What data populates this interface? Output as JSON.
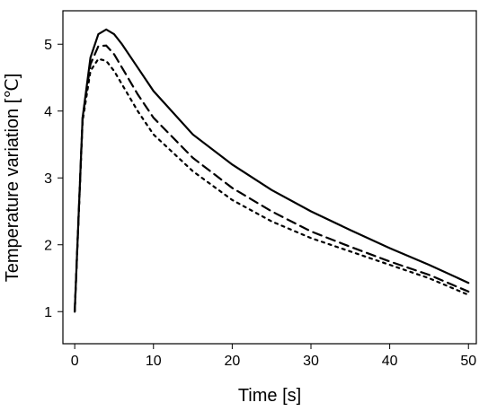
{
  "chart_data": {
    "type": "line",
    "x_label": "Time [s]",
    "y_label": "Temperature variation [℃]",
    "x": [
      0,
      1,
      2,
      3,
      4,
      5,
      6,
      8,
      10,
      15,
      20,
      25,
      30,
      35,
      40,
      45,
      50
    ],
    "series": [
      {
        "color": "#000000",
        "dash": "solid",
        "values": [
          1.0,
          3.9,
          4.8,
          5.15,
          5.22,
          5.15,
          5.0,
          4.65,
          4.3,
          3.65,
          3.2,
          2.82,
          2.5,
          2.22,
          1.95,
          1.7,
          1.43
        ]
      },
      {
        "color": "#000000",
        "dash": "dashed",
        "values": [
          1.0,
          3.9,
          4.7,
          4.97,
          4.98,
          4.85,
          4.65,
          4.25,
          3.9,
          3.3,
          2.85,
          2.5,
          2.2,
          1.97,
          1.75,
          1.55,
          1.3
        ]
      },
      {
        "color": "#000000",
        "dash": "dotted",
        "values": [
          1.0,
          3.85,
          4.6,
          4.78,
          4.75,
          4.6,
          4.4,
          4.0,
          3.65,
          3.1,
          2.67,
          2.35,
          2.1,
          1.9,
          1.7,
          1.5,
          1.25
        ]
      }
    ],
    "xlim": [
      -1.5,
      51
    ],
    "ylim": [
      0.52,
      5.5
    ],
    "xticks": [
      0,
      10,
      20,
      30,
      40,
      50
    ],
    "yticks": [
      1,
      2,
      3,
      4,
      5
    ],
    "grid": false
  }
}
